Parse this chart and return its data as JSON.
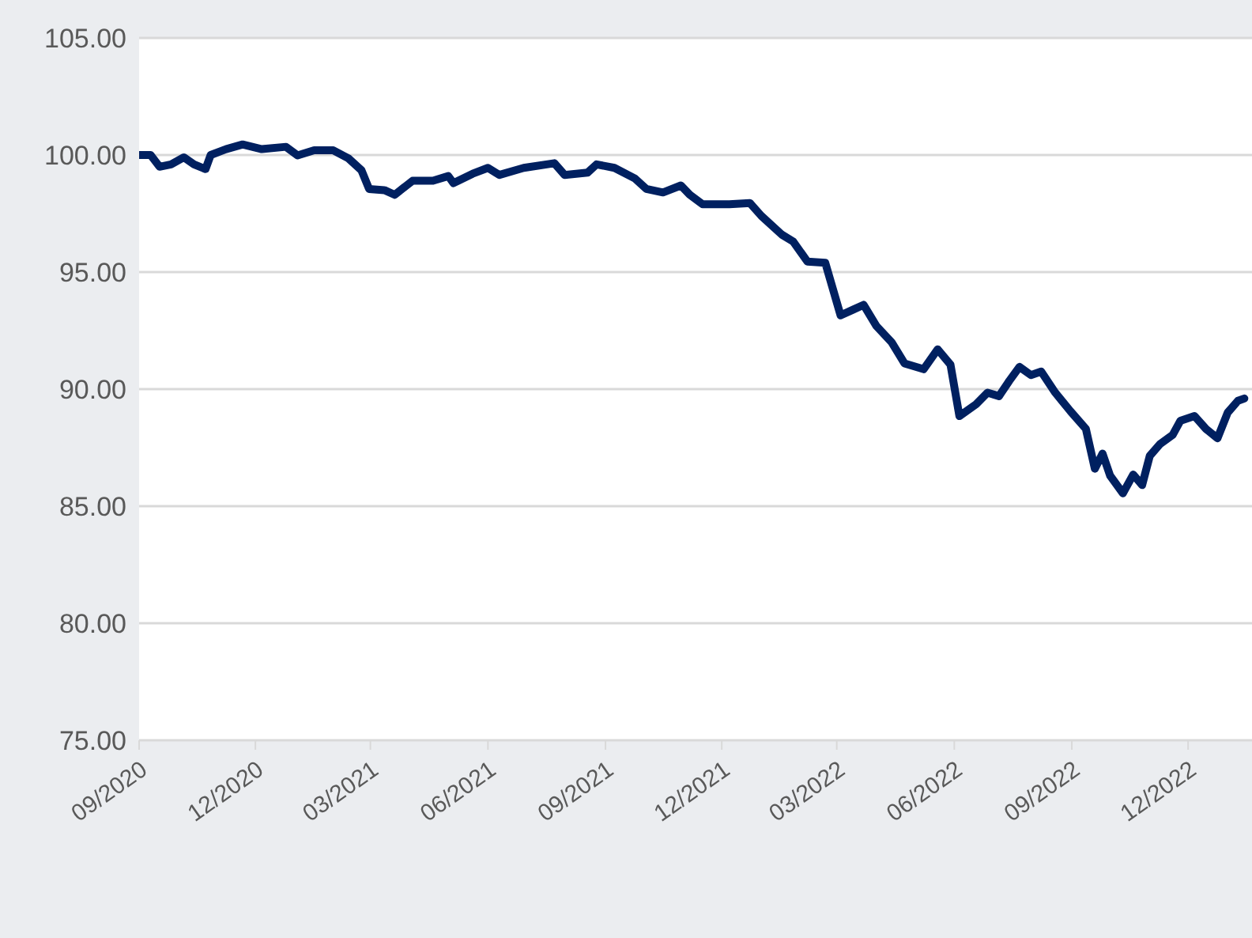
{
  "chart_data": {
    "type": "line",
    "x": [
      "2020-09-01",
      "2020-09-10",
      "2020-09-17",
      "2020-09-26",
      "2020-10-06",
      "2020-10-14",
      "2020-10-23",
      "2020-10-27",
      "2020-11-08",
      "2020-11-21",
      "2020-12-06",
      "2020-12-25",
      "2021-01-03",
      "2021-01-16",
      "2021-01-31",
      "2021-02-12",
      "2021-02-22",
      "2021-02-28",
      "2021-03-12",
      "2021-03-20",
      "2021-04-03",
      "2021-04-19",
      "2021-05-01",
      "2021-05-05",
      "2021-05-20",
      "2021-06-01",
      "2021-06-10",
      "2021-06-29",
      "2021-07-23",
      "2021-07-31",
      "2021-08-18",
      "2021-08-25",
      "2021-09-08",
      "2021-09-24",
      "2021-10-03",
      "2021-10-16",
      "2021-10-30",
      "2021-11-06",
      "2021-11-16",
      "2021-12-07",
      "2021-12-23",
      "2022-01-01",
      "2022-01-17",
      "2022-01-26",
      "2022-02-06",
      "2022-02-20",
      "2022-03-04",
      "2022-03-14",
      "2022-03-22",
      "2022-04-01",
      "2022-04-13",
      "2022-04-23",
      "2022-05-08",
      "2022-05-19",
      "2022-05-29",
      "2022-06-05",
      "2022-06-18",
      "2022-06-27",
      "2022-07-06",
      "2022-07-14",
      "2022-07-22",
      "2022-07-31",
      "2022-08-08",
      "2022-08-19",
      "2022-08-31",
      "2022-09-12",
      "2022-09-19",
      "2022-09-25",
      "2022-10-01",
      "2022-10-11",
      "2022-10-19",
      "2022-10-26",
      "2022-11-01",
      "2022-11-09",
      "2022-11-19",
      "2022-11-25",
      "2022-12-06",
      "2022-12-15",
      "2022-12-24",
      "2023-01-01",
      "2023-01-09",
      "2023-01-14"
    ],
    "series": [
      {
        "color": "#002060",
        "values": [
          100.0,
          100.0,
          99.5,
          99.6,
          99.9,
          99.6,
          99.4,
          100.0,
          100.25,
          100.45,
          100.25,
          100.35,
          99.98,
          100.2,
          100.2,
          99.85,
          99.35,
          98.55,
          98.5,
          98.3,
          98.9,
          98.9,
          99.1,
          98.8,
          99.2,
          99.45,
          99.15,
          99.45,
          99.65,
          99.15,
          99.25,
          99.6,
          99.45,
          99.0,
          98.55,
          98.4,
          98.7,
          98.3,
          97.9,
          97.9,
          97.95,
          97.4,
          96.6,
          96.3,
          95.45,
          95.4,
          93.15,
          93.4,
          93.6,
          92.7,
          92.0,
          91.1,
          90.85,
          91.7,
          91.05,
          88.85,
          89.35,
          89.85,
          89.7,
          90.35,
          90.95,
          90.6,
          90.75,
          89.85,
          89.05,
          88.3,
          86.6,
          87.25,
          86.3,
          85.55,
          86.35,
          85.9,
          87.15,
          87.65,
          88.05,
          88.65,
          88.85,
          88.3,
          87.9,
          89.0,
          89.5,
          89.6
        ]
      }
    ],
    "xlim": [
      "2020-09-01",
      "2023-01-20"
    ],
    "xticks": [
      {
        "value": "2020-09",
        "label": "09/2020"
      },
      {
        "value": "2020-12",
        "label": "12/2020"
      },
      {
        "value": "2021-03",
        "label": "03/2021"
      },
      {
        "value": "2021-06",
        "label": "06/2021"
      },
      {
        "value": "2021-09",
        "label": "09/2021"
      },
      {
        "value": "2021-12",
        "label": "12/2021"
      },
      {
        "value": "2022-03",
        "label": "03/2022"
      },
      {
        "value": "2022-06",
        "label": "06/2022"
      },
      {
        "value": "2022-09",
        "label": "09/2022"
      },
      {
        "value": "2022-12",
        "label": "12/2022"
      }
    ],
    "ylim": [
      75,
      105
    ],
    "yticks": [
      {
        "value": 75,
        "label": "75.00"
      },
      {
        "value": 80,
        "label": "80.00"
      },
      {
        "value": 85,
        "label": "85.00"
      },
      {
        "value": 90,
        "label": "90.00"
      },
      {
        "value": 95,
        "label": "95.00"
      },
      {
        "value": 100,
        "label": "100.00"
      },
      {
        "value": 105,
        "label": "105.00"
      }
    ],
    "grid": "y",
    "marker": "none",
    "line_style": "solid"
  }
}
